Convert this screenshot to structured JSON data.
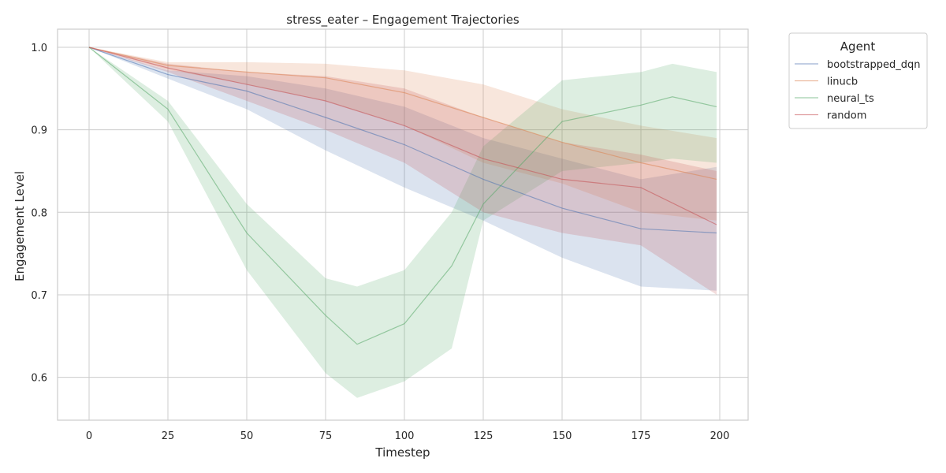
{
  "chart_data": {
    "type": "line",
    "title": "stress_eater – Engagement Trajectories",
    "xlabel": "Timestep",
    "ylabel": "Engagement Level",
    "xlim": [
      -10,
      209
    ],
    "ylim": [
      0.548,
      1.022
    ],
    "x_ticks": [
      0,
      25,
      50,
      75,
      100,
      125,
      150,
      175,
      200
    ],
    "y_ticks": [
      0.6,
      0.7,
      0.8,
      0.9,
      1.0
    ],
    "y_tick_labels": [
      "0.6",
      "0.7",
      "0.8",
      "0.9",
      "1.0"
    ],
    "grid": true,
    "legend": {
      "title": "Agent",
      "placement": "outside-top-right"
    },
    "series": [
      {
        "name": "bootstrapped_dqn",
        "color": "#4c72b0",
        "x": [
          0,
          25,
          50,
          75,
          100,
          125,
          150,
          175,
          199
        ],
        "mean": [
          1.0,
          0.967,
          0.947,
          0.915,
          0.882,
          0.84,
          0.805,
          0.78,
          0.775
        ],
        "lower": [
          1.0,
          0.962,
          0.925,
          0.875,
          0.83,
          0.79,
          0.745,
          0.71,
          0.705
        ],
        "upper": [
          1.0,
          0.972,
          0.965,
          0.95,
          0.928,
          0.89,
          0.865,
          0.84,
          0.855
        ]
      },
      {
        "name": "linucb",
        "color": "#dd8452",
        "x": [
          0,
          25,
          50,
          75,
          100,
          125,
          150,
          175,
          199
        ],
        "mean": [
          1.0,
          0.978,
          0.97,
          0.963,
          0.945,
          0.915,
          0.885,
          0.86,
          0.84
        ],
        "lower": [
          1.0,
          0.973,
          0.955,
          0.935,
          0.905,
          0.86,
          0.835,
          0.8,
          0.79
        ],
        "upper": [
          1.0,
          0.982,
          0.982,
          0.98,
          0.972,
          0.955,
          0.925,
          0.905,
          0.89
        ]
      },
      {
        "name": "neural_ts",
        "color": "#55a868",
        "x": [
          0,
          25,
          50,
          75,
          85,
          100,
          115,
          125,
          150,
          175,
          185,
          199
        ],
        "mean": [
          1.0,
          0.925,
          0.775,
          0.675,
          0.64,
          0.665,
          0.735,
          0.81,
          0.91,
          0.93,
          0.94,
          0.928
        ],
        "lower": [
          1.0,
          0.91,
          0.73,
          0.605,
          0.575,
          0.595,
          0.635,
          0.79,
          0.85,
          0.86,
          0.865,
          0.86
        ],
        "upper": [
          1.0,
          0.935,
          0.81,
          0.72,
          0.71,
          0.73,
          0.8,
          0.88,
          0.96,
          0.97,
          0.98,
          0.97
        ]
      },
      {
        "name": "random",
        "color": "#c44e52",
        "x": [
          0,
          25,
          50,
          75,
          100,
          125,
          150,
          175,
          199
        ],
        "mean": [
          1.0,
          0.975,
          0.955,
          0.935,
          0.905,
          0.865,
          0.84,
          0.83,
          0.785
        ],
        "lower": [
          1.0,
          0.97,
          0.935,
          0.9,
          0.86,
          0.8,
          0.775,
          0.76,
          0.7
        ],
        "upper": [
          1.0,
          0.98,
          0.97,
          0.965,
          0.95,
          0.915,
          0.885,
          0.87,
          0.85
        ]
      }
    ]
  }
}
